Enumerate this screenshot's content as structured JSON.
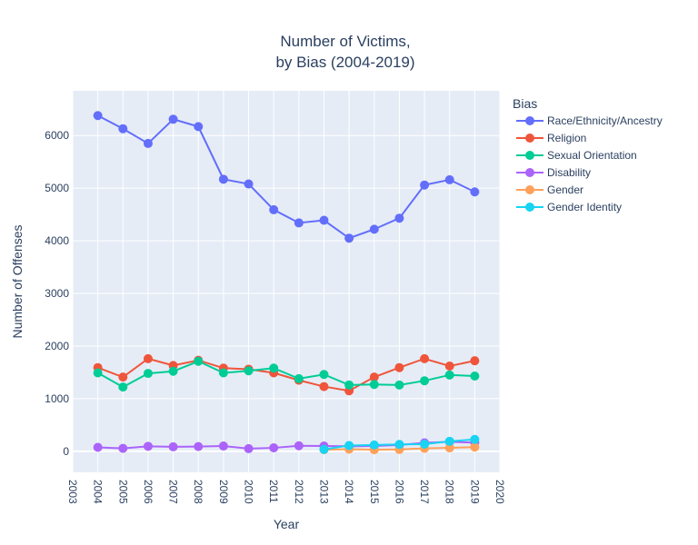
{
  "chart_data": {
    "type": "line",
    "title_lines": [
      "Number of Victims,",
      "by Bias (2004-2019)"
    ],
    "xlabel": "Year",
    "ylabel": "Number of Offenses",
    "xlim": [
      2003,
      2020
    ],
    "ylim": [
      -400,
      6850
    ],
    "x_ticks": [
      2003,
      2004,
      2005,
      2006,
      2007,
      2008,
      2009,
      2010,
      2011,
      2012,
      2013,
      2014,
      2015,
      2016,
      2017,
      2018,
      2019,
      2020
    ],
    "y_ticks": [
      0,
      1000,
      2000,
      3000,
      4000,
      5000,
      6000
    ],
    "grid": true,
    "legend_title": "Bias",
    "legend_position": "right",
    "series": [
      {
        "name": "Race/Ethnicity/Ancestry",
        "color": "#636efa",
        "x": [
          2004,
          2005,
          2006,
          2007,
          2008,
          2009,
          2010,
          2011,
          2012,
          2013,
          2014,
          2015,
          2016,
          2017,
          2018,
          2019
        ],
        "y": [
          6380,
          6130,
          5850,
          6310,
          6170,
          5170,
          5080,
          4590,
          4340,
          4390,
          4050,
          4220,
          4430,
          5060,
          5160,
          4930
        ]
      },
      {
        "name": "Religion",
        "color": "#EF553B",
        "x": [
          2004,
          2005,
          2006,
          2007,
          2008,
          2009,
          2010,
          2011,
          2012,
          2013,
          2014,
          2015,
          2016,
          2017,
          2018,
          2019
        ],
        "y": [
          1590,
          1410,
          1760,
          1630,
          1730,
          1580,
          1560,
          1490,
          1350,
          1230,
          1150,
          1410,
          1590,
          1760,
          1620,
          1720
        ]
      },
      {
        "name": "Sexual Orientation",
        "color": "#00cc96",
        "x": [
          2004,
          2005,
          2006,
          2007,
          2008,
          2009,
          2010,
          2011,
          2012,
          2013,
          2014,
          2015,
          2016,
          2017,
          2018,
          2019
        ],
        "y": [
          1490,
          1220,
          1480,
          1520,
          1710,
          1490,
          1530,
          1580,
          1380,
          1460,
          1260,
          1270,
          1260,
          1340,
          1450,
          1430
        ]
      },
      {
        "name": "Disability",
        "color": "#ab63fa",
        "x": [
          2004,
          2005,
          2006,
          2007,
          2008,
          2009,
          2010,
          2011,
          2012,
          2013,
          2014,
          2015,
          2016,
          2017,
          2018,
          2019
        ],
        "y": [
          75,
          55,
          95,
          85,
          90,
          100,
          50,
          65,
          105,
          100,
          95,
          100,
          120,
          160,
          180,
          165
        ]
      },
      {
        "name": "Gender",
        "color": "#FFA15A",
        "x": [
          2013,
          2014,
          2015,
          2016,
          2017,
          2018,
          2019
        ],
        "y": [
          30,
          40,
          30,
          35,
          55,
          65,
          80
        ]
      },
      {
        "name": "Gender Identity",
        "color": "#19d3f3",
        "x": [
          2013,
          2014,
          2015,
          2016,
          2017,
          2018,
          2019
        ],
        "y": [
          35,
          110,
          120,
          130,
          135,
          190,
          225
        ]
      }
    ]
  }
}
